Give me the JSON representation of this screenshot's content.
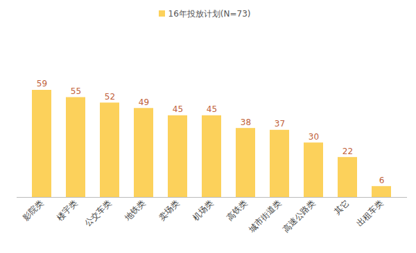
{
  "chart_data": {
    "type": "bar",
    "categories": [
      "影院类",
      "楼宇类",
      "公交车类",
      "地铁类",
      "卖场类",
      "机场类",
      "高铁类",
      "城市街道类",
      "高速公路类",
      "其它",
      "出租车类"
    ],
    "series": [
      {
        "name": "16年投放计划(N=73)",
        "color": "#fcd15b",
        "values": [
          59,
          55,
          52,
          49,
          45,
          45,
          38,
          37,
          30,
          22,
          6
        ]
      }
    ],
    "legend": "top",
    "data_labels": true,
    "tick_labels": "x"
  }
}
